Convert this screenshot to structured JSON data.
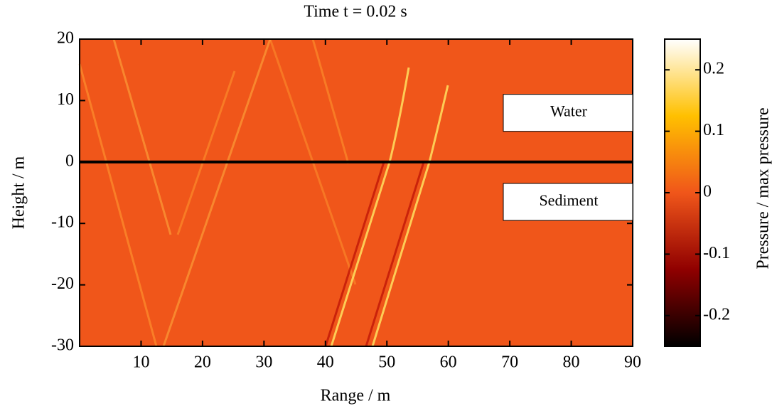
{
  "chart_data": {
    "type": "heatmap",
    "title": "Time t = 0.02 s",
    "x_label": "Range / m",
    "y_label": "Height / m",
    "colorbar_label": "Pressure / max pressure",
    "xlim": [
      0,
      90
    ],
    "xticks": [
      10,
      20,
      30,
      40,
      50,
      60,
      70,
      80,
      90
    ],
    "ylim": [
      -30,
      20
    ],
    "yticks": [
      -30,
      -20,
      -10,
      0,
      10,
      20
    ],
    "clim": [
      -0.25,
      0.25
    ],
    "cticks": [
      -0.2,
      -0.1,
      0,
      0.1,
      0.2
    ],
    "colormap": [
      "#000000",
      "#900000",
      "#f0561a",
      "#ffc000",
      "#ffffff"
    ],
    "hlines": [
      0
    ],
    "annotations": [
      {
        "text": "Water",
        "y": 8
      },
      {
        "text": "Sediment",
        "y": -6.5
      }
    ]
  }
}
